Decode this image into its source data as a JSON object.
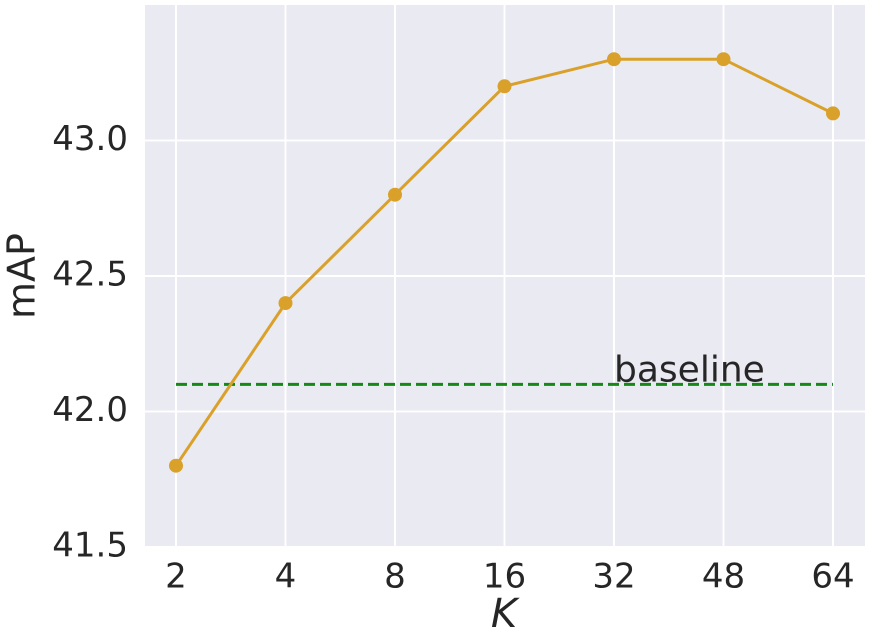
{
  "chart_data": {
    "type": "line",
    "x_label": "K",
    "y_label": "mAP",
    "categories": [
      "2",
      "4",
      "8",
      "16",
      "32",
      "48",
      "64"
    ],
    "series": [
      {
        "name": "mAP",
        "color": "#daa12a",
        "values": [
          41.8,
          42.4,
          42.8,
          43.2,
          43.3,
          43.3,
          43.1
        ]
      }
    ],
    "reference_lines": [
      {
        "label": "baseline",
        "value": 42.1,
        "color": "#138a13",
        "style": "dashed"
      }
    ],
    "ylim": [
      41.5,
      43.5
    ],
    "yticks": [
      {
        "value": 41.5,
        "label": "41.5"
      },
      {
        "value": 42,
        "label": "42.0"
      },
      {
        "value": 42.5,
        "label": "42.5"
      },
      {
        "value": 43,
        "label": "43.0"
      }
    ],
    "grid": true
  }
}
